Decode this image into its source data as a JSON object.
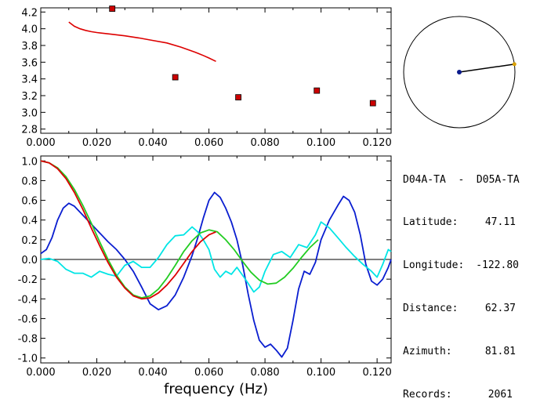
{
  "info_panel": {
    "station_pair": "D04A-TA  -  D05A-TA",
    "rows": [
      {
        "label": "Latitude:",
        "value": "47.11"
      },
      {
        "label": "Longitude:",
        "value": "-122.80"
      },
      {
        "label": "Distance:",
        "value": "62.37"
      },
      {
        "label": "Azimuth:",
        "value": "81.81"
      },
      {
        "label": "Records:",
        "value": "2061"
      }
    ]
  },
  "azimuth_plot": {
    "azimuth_deg": 81.81,
    "colors": {
      "circle": "#000000",
      "center": "#0a1a8c",
      "edge_point": "#d9a000",
      "line": "#000000"
    }
  },
  "chart_data": [
    {
      "type": "scatter",
      "panel": "top",
      "xlim": [
        0.0,
        0.125
      ],
      "ylim": [
        2.75,
        4.25
      ],
      "x_ticks": [
        "0.000",
        "0.020",
        "0.040",
        "0.060",
        "0.080",
        "0.100",
        "0.120"
      ],
      "y_ticks": [
        "2.8",
        "3.0",
        "3.2",
        "3.4",
        "3.6",
        "3.8",
        "4.0",
        "4.2"
      ],
      "points": {
        "color": "#cc0000",
        "x": [
          0.0255,
          0.048,
          0.0705,
          0.0985,
          0.1185
        ],
        "y": [
          4.24,
          3.42,
          3.18,
          3.26,
          3.11
        ]
      },
      "curve": {
        "color": "#dd0000",
        "x": [
          0.01,
          0.012,
          0.014,
          0.016,
          0.018,
          0.02,
          0.025,
          0.03,
          0.035,
          0.04,
          0.045,
          0.05,
          0.055,
          0.058,
          0.06,
          0.0625
        ],
        "y": [
          4.08,
          4.03,
          4.0,
          3.98,
          3.965,
          3.955,
          3.935,
          3.915,
          3.89,
          3.86,
          3.83,
          3.78,
          3.72,
          3.68,
          3.65,
          3.61
        ]
      }
    },
    {
      "type": "line",
      "panel": "bottom",
      "xlim": [
        0.0,
        0.125
      ],
      "ylim": [
        -1.05,
        1.05
      ],
      "xlabel": "frequency (Hz)",
      "x_ticks": [
        "0.000",
        "0.020",
        "0.040",
        "0.060",
        "0.080",
        "0.100",
        "0.120"
      ],
      "y_ticks": [
        "1.0",
        "0.8",
        "0.6",
        "0.4",
        "0.2",
        "0.0",
        "-0.2",
        "-0.4",
        "-0.6",
        "-0.8",
        "-1.0"
      ],
      "zero_line": true,
      "series": [
        {
          "color": "#0a1ed0",
          "x": [
            0.0,
            0.002,
            0.004,
            0.006,
            0.008,
            0.01,
            0.012,
            0.015,
            0.018,
            0.021,
            0.024,
            0.027,
            0.03,
            0.033,
            0.036,
            0.039,
            0.042,
            0.045,
            0.048,
            0.051,
            0.054,
            0.056,
            0.058,
            0.06,
            0.062,
            0.064,
            0.066,
            0.068,
            0.07,
            0.072,
            0.074,
            0.076,
            0.078,
            0.08,
            0.082,
            0.084,
            0.086,
            0.088,
            0.09,
            0.092,
            0.094,
            0.096,
            0.098,
            0.1,
            0.103,
            0.106,
            0.108,
            0.11,
            0.112,
            0.114,
            0.116,
            0.118,
            0.12,
            0.122,
            0.124,
            0.125
          ],
          "y": [
            0.06,
            0.1,
            0.22,
            0.4,
            0.52,
            0.57,
            0.54,
            0.45,
            0.36,
            0.27,
            0.18,
            0.1,
            0.0,
            -0.12,
            -0.28,
            -0.45,
            -0.51,
            -0.47,
            -0.36,
            -0.18,
            0.04,
            0.22,
            0.42,
            0.6,
            0.68,
            0.63,
            0.52,
            0.38,
            0.2,
            -0.05,
            -0.35,
            -0.62,
            -0.82,
            -0.89,
            -0.86,
            -0.92,
            -0.99,
            -0.9,
            -0.62,
            -0.3,
            -0.12,
            -0.15,
            -0.03,
            0.2,
            0.4,
            0.55,
            0.64,
            0.6,
            0.48,
            0.25,
            -0.05,
            -0.22,
            -0.26,
            -0.2,
            -0.08,
            0.0
          ]
        },
        {
          "color": "#00e5e5",
          "x": [
            0.0,
            0.003,
            0.006,
            0.009,
            0.012,
            0.015,
            0.018,
            0.021,
            0.024,
            0.027,
            0.03,
            0.033,
            0.036,
            0.039,
            0.042,
            0.045,
            0.048,
            0.051,
            0.054,
            0.056,
            0.058,
            0.06,
            0.062,
            0.064,
            0.066,
            0.068,
            0.07,
            0.073,
            0.076,
            0.078,
            0.08,
            0.083,
            0.086,
            0.089,
            0.092,
            0.095,
            0.098,
            0.1,
            0.103,
            0.106,
            0.109,
            0.112,
            0.115,
            0.118,
            0.12,
            0.122,
            0.124,
            0.125
          ],
          "y": [
            0.0,
            0.01,
            -0.02,
            -0.1,
            -0.14,
            -0.14,
            -0.18,
            -0.12,
            -0.15,
            -0.17,
            -0.06,
            -0.02,
            -0.08,
            -0.08,
            0.02,
            0.15,
            0.24,
            0.25,
            0.33,
            0.28,
            0.2,
            0.1,
            -0.1,
            -0.18,
            -0.12,
            -0.15,
            -0.08,
            -0.2,
            -0.33,
            -0.28,
            -0.12,
            0.05,
            0.08,
            0.02,
            0.15,
            0.12,
            0.25,
            0.38,
            0.32,
            0.22,
            0.12,
            0.03,
            -0.05,
            -0.12,
            -0.18,
            -0.05,
            0.1,
            0.08
          ]
        },
        {
          "color": "#22cc22",
          "x": [
            0.0,
            0.003,
            0.006,
            0.009,
            0.012,
            0.015,
            0.018,
            0.021,
            0.024,
            0.027,
            0.03,
            0.033,
            0.036,
            0.039,
            0.042,
            0.045,
            0.048,
            0.051,
            0.054,
            0.057,
            0.06,
            0.063,
            0.066,
            0.069,
            0.072,
            0.075,
            0.078,
            0.081,
            0.084,
            0.087,
            0.09,
            0.093,
            0.096,
            0.099
          ],
          "y": [
            1.0,
            0.98,
            0.93,
            0.84,
            0.71,
            0.55,
            0.37,
            0.18,
            0.0,
            -0.16,
            -0.28,
            -0.36,
            -0.39,
            -0.37,
            -0.3,
            -0.19,
            -0.06,
            0.08,
            0.19,
            0.27,
            0.3,
            0.28,
            0.2,
            0.1,
            -0.02,
            -0.13,
            -0.21,
            -0.25,
            -0.24,
            -0.18,
            -0.09,
            0.02,
            0.12,
            0.2
          ]
        },
        {
          "color": "#dd0000",
          "x": [
            0.0,
            0.003,
            0.006,
            0.009,
            0.012,
            0.015,
            0.018,
            0.021,
            0.024,
            0.027,
            0.03,
            0.033,
            0.036,
            0.039,
            0.042,
            0.045,
            0.048,
            0.051,
            0.054,
            0.057,
            0.06,
            0.0625
          ],
          "y": [
            1.0,
            0.98,
            0.92,
            0.82,
            0.68,
            0.51,
            0.32,
            0.14,
            -0.03,
            -0.18,
            -0.29,
            -0.37,
            -0.4,
            -0.39,
            -0.34,
            -0.26,
            -0.16,
            -0.04,
            0.08,
            0.18,
            0.25,
            0.28
          ]
        }
      ]
    }
  ]
}
